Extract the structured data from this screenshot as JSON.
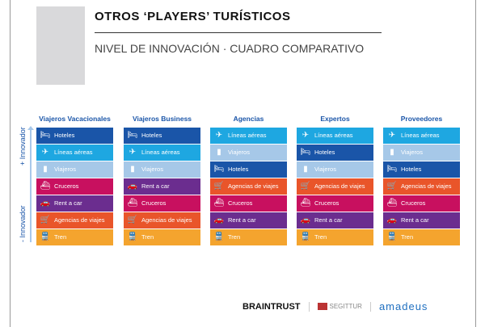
{
  "header": {
    "title": "OTROS ‘PLAYERS’ TURÍSTICOS",
    "subtitle": "NIVEL DE INNOVACIÓN  · CUADRO COMPARATIVO"
  },
  "axis": {
    "top": "+ Innovador",
    "bottom": "- Innovador"
  },
  "colors": {
    "Hoteles": "#1a55a8",
    "Líneas aéreas": "#1ea7e1",
    "Viajeros": "#a6c8e8",
    "Cruceros": "#c8105f",
    "Rent a car": "#6b2d8f",
    "Agencias de viajes": "#e9552a",
    "Tren": "#f4a42e"
  },
  "icons": {
    "Hoteles": "bed-icon",
    "Líneas aéreas": "plane-icon",
    "Viajeros": "luggage-icon",
    "Cruceros": "ship-icon",
    "Rent a car": "car-icon",
    "Agencias de viajes": "cart-icon",
    "Tren": "train-icon"
  },
  "columns": [
    {
      "title": "Viajeros Vacacionales",
      "items": [
        "Hoteles",
        "Líneas aéreas",
        "Viajeros",
        "Cruceros",
        "Rent a car",
        "Agencias de viajes",
        "Tren"
      ]
    },
    {
      "title": "Viajeros Business",
      "items": [
        "Hoteles",
        "Líneas aéreas",
        "Viajeros",
        "Rent a car",
        "Cruceros",
        "Agencias de viajes",
        "Tren"
      ]
    },
    {
      "title": "Agencias",
      "items": [
        "Líneas aéreas",
        "Viajeros",
        "Hoteles",
        "Agencias de viajes",
        "Cruceros",
        "Rent a car",
        "Tren"
      ]
    },
    {
      "title": "Expertos",
      "items": [
        "Líneas aéreas",
        "Hoteles",
        "Viajeros",
        "Agencias de viajes",
        "Cruceros",
        "Rent a car",
        "Tren"
      ]
    },
    {
      "title": "Proveedores",
      "items": [
        "Líneas aéreas",
        "Viajeros",
        "Hoteles",
        "Agencias de viajes",
        "Cruceros",
        "Rent a car",
        "Tren"
      ]
    }
  ],
  "logos": {
    "braintrust": "BRAINTRUST",
    "segittur": "SEGITTUR",
    "amadeus": "amadeus"
  }
}
